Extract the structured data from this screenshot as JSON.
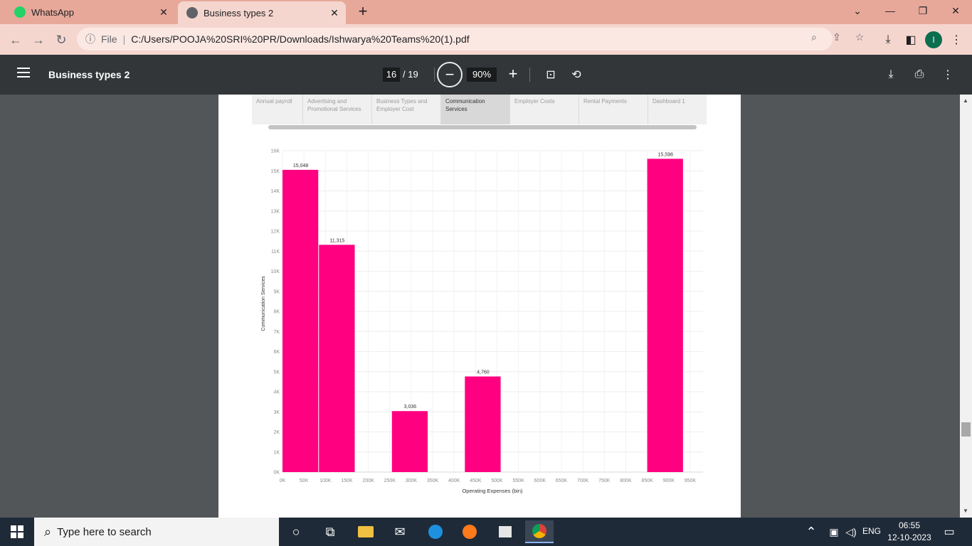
{
  "browser": {
    "tabs": [
      {
        "title": "WhatsApp",
        "icon": "whatsapp-icon"
      },
      {
        "title": "Business types 2",
        "icon": "globe-icon"
      }
    ],
    "new_tab_symbol": "+",
    "address": {
      "scheme": "File",
      "url": "C:/Users/POOJA%20SRI%20PR/Downloads/Ishwarya%20Teams%20(1).pdf"
    },
    "profile_initial": "I"
  },
  "pdf": {
    "title": "Business types 2",
    "page_current": "16",
    "page_total": "/ 19",
    "zoom": "90%"
  },
  "dashboard_tabs": [
    {
      "label": "Annual payroll",
      "selected": false
    },
    {
      "label": "Advertising and Promotional Services",
      "selected": false
    },
    {
      "label": "Business Types and Employer Cost",
      "selected": false
    },
    {
      "label": "Communication Services",
      "selected": true
    },
    {
      "label": "Employer Costs",
      "selected": false
    },
    {
      "label": "Rental Payments",
      "selected": false
    },
    {
      "label": "Dashboard 1",
      "selected": false
    }
  ],
  "chart_data": {
    "type": "bar",
    "xlabel": "Operating Expenses (bin)",
    "ylabel": "Communication Services",
    "bar_color": "#ff0080",
    "ylim": [
      0,
      16000
    ],
    "yticks": [
      "0K",
      "1K",
      "2K",
      "3K",
      "4K",
      "5K",
      "6K",
      "7K",
      "8K",
      "9K",
      "10K",
      "11K",
      "12K",
      "13K",
      "14K",
      "15K",
      "16K"
    ],
    "xticks": [
      "0K",
      "50K",
      "100K",
      "150K",
      "200K",
      "250K",
      "300K",
      "350K",
      "400K",
      "450K",
      "500K",
      "550K",
      "600K",
      "650K",
      "700K",
      "750K",
      "800K",
      "850K",
      "900K",
      "950K"
    ],
    "bars": [
      {
        "x_start": 0,
        "x_end": 85000,
        "value": 15048,
        "label": "15,048"
      },
      {
        "x_start": 85000,
        "x_end": 170000,
        "value": 11315,
        "label": "11,315"
      },
      {
        "x_start": 255000,
        "x_end": 340000,
        "value": 3036,
        "label": "3,036"
      },
      {
        "x_start": 425000,
        "x_end": 510000,
        "value": 4760,
        "label": "4,760"
      },
      {
        "x_start": 850000,
        "x_end": 935000,
        "value": 15598,
        "label": "15,598"
      }
    ]
  },
  "taskbar": {
    "search_placeholder": "Type here to search",
    "language": "ENG",
    "time": "06:55",
    "date": "12-10-2023"
  }
}
